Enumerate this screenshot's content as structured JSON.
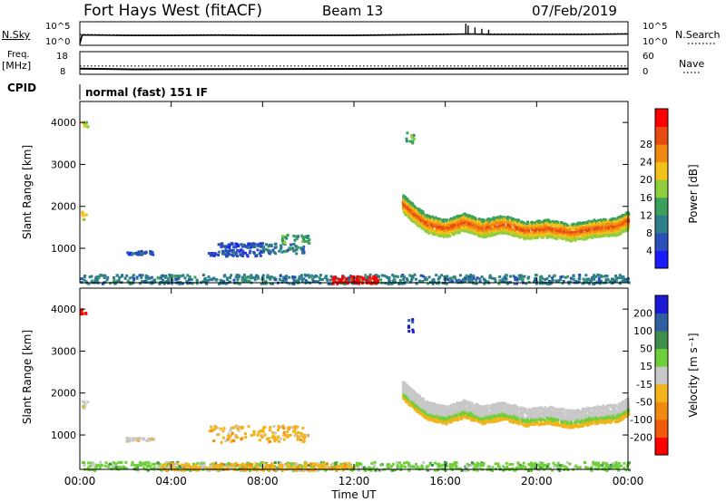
{
  "header": {
    "station": "Fort Hays West (fitACF)",
    "beam": "Beam 13",
    "date": "07/Feb/2019"
  },
  "cpid_label": "CPID",
  "cpid_text": "normal (fast) 151 IF",
  "chart_data": [
    {
      "type": "line",
      "panel": "noise",
      "left_label": "N.Sky",
      "right_label": "N.Search",
      "left_ticks": [
        "10^5",
        "10^0"
      ],
      "right_ticks": [
        "10^5",
        "10^0"
      ],
      "series": [
        {
          "name": "N.Sky",
          "style": "solid",
          "x_hours": [
            0,
            0.1,
            2,
            4,
            6,
            8,
            10,
            12,
            14,
            16,
            17,
            18,
            20,
            22,
            24
          ],
          "log10_values": [
            0.3,
            2.2,
            2.1,
            2.1,
            2.15,
            2.1,
            2.1,
            2.1,
            2.2,
            2.3,
            2.4,
            2.3,
            2.3,
            2.3,
            2.4
          ]
        },
        {
          "name": "N.Search",
          "style": "dotted",
          "x_hours": [
            0,
            2,
            4,
            6,
            8,
            10,
            12,
            14,
            16,
            18,
            20,
            22,
            24
          ],
          "log10_values": [
            2.3,
            2.2,
            2.2,
            2.25,
            2.2,
            2.2,
            2.2,
            2.3,
            2.4,
            2.4,
            2.4,
            2.4,
            2.5
          ]
        }
      ],
      "spikes": [
        {
          "x_hours": 16.9,
          "log10_value": 4.6
        },
        {
          "x_hours": 17.0,
          "log10_value": 4.2
        },
        {
          "x_hours": 17.3,
          "log10_value": 3.8
        },
        {
          "x_hours": 17.6,
          "log10_value": 3.5
        },
        {
          "x_hours": 17.9,
          "log10_value": 3.3
        }
      ]
    },
    {
      "type": "line",
      "panel": "freq-nave",
      "left_label": "Freq.",
      "left_unit": "[MHz]",
      "right_label": "Nave",
      "left_ticks": [
        "18",
        "8"
      ],
      "right_ticks": [
        "60",
        "0"
      ],
      "series": [
        {
          "name": "Freq.",
          "style": "solid",
          "x_hours": [
            0,
            2.3,
            14.8,
            24
          ],
          "values": [
            10.5,
            10.2,
            10.5,
            10.5
          ]
        },
        {
          "name": "Nave",
          "style": "dotted",
          "x_hours": [
            0,
            24
          ],
          "values": [
            22,
            22
          ]
        }
      ]
    },
    {
      "type": "heatmap",
      "panel": "power",
      "ylabel": "Slant Range [km]",
      "yticks": [
        "1000",
        "2000",
        "3000",
        "4000"
      ],
      "ylim": [
        180,
        4500
      ],
      "xlim_hours": [
        0,
        24
      ],
      "colorbar_label": "Power [dB]",
      "colorbar_ticks": [
        "4",
        "8",
        "12",
        "16",
        "20",
        "24",
        "28"
      ],
      "colorbar_colors": [
        "#1a1aff",
        "#2a4fb8",
        "#2f7e8c",
        "#3aa05a",
        "#8fcf3c",
        "#f2c21a",
        "#f28a12",
        "#e84a12",
        "#ff0000"
      ],
      "regions": [
        {
          "t0": 0.0,
          "t1": 0.3,
          "r0": 3900,
          "r1": 4100,
          "level": 4
        },
        {
          "t0": 0.0,
          "t1": 0.3,
          "r0": 1700,
          "r1": 1900,
          "level": 5
        },
        {
          "t0": 2.0,
          "t1": 3.2,
          "r0": 880,
          "r1": 960,
          "level": 1
        },
        {
          "t0": 5.6,
          "t1": 8.0,
          "r0": 840,
          "r1": 1000,
          "level": 1
        },
        {
          "t0": 6.0,
          "t1": 8.0,
          "r0": 1050,
          "r1": 1150,
          "level": 1
        },
        {
          "t0": 8.0,
          "t1": 9.8,
          "r0": 900,
          "r1": 1150,
          "level": 2
        },
        {
          "t0": 8.8,
          "t1": 10.0,
          "r0": 1150,
          "r1": 1350,
          "level": 3
        },
        {
          "t0": 14.2,
          "t1": 14.6,
          "r0": 3500,
          "r1": 3800,
          "level": 3
        },
        {
          "t0": 0.0,
          "t1": 24.0,
          "r0": 180,
          "r1": 400,
          "level": 2
        },
        {
          "t0": 11.0,
          "t1": 13.0,
          "r0": 180,
          "r1": 360,
          "level": 8
        }
      ],
      "traces": [
        {
          "x_hours": [
            14.1,
            14.6,
            15.2,
            16.0,
            16.8,
            17.6,
            18.5,
            19.5,
            20.5,
            21.5,
            22.5,
            23.5,
            24.0
          ],
          "center_km": [
            2100,
            1850,
            1600,
            1500,
            1650,
            1500,
            1600,
            1450,
            1500,
            1400,
            1500,
            1550,
            1700
          ],
          "width_km": 420,
          "levels": [
            3,
            5,
            6,
            7,
            6,
            5,
            4
          ]
        }
      ]
    },
    {
      "type": "heatmap",
      "panel": "velocity",
      "ylabel": "Slant Range [km]",
      "yticks": [
        "1000",
        "2000",
        "3000",
        "4000"
      ],
      "ylim": [
        180,
        4500
      ],
      "xlim_hours": [
        0,
        24
      ],
      "xlabel": "Time UT",
      "xticks": [
        "00:00",
        "04:00",
        "08:00",
        "12:00",
        "16:00",
        "20:00",
        "00:00"
      ],
      "colorbar_label": "Velocity [m s⁻¹]",
      "colorbar_ticks": [
        "200",
        "100",
        "50",
        "15",
        "-15",
        "-50",
        "-100",
        "-200"
      ],
      "colorbar_colors": [
        "#1a1ad6",
        "#2f5fa0",
        "#3f8f4a",
        "#6fcf3a",
        "#c8c8c8",
        "#f2b41a",
        "#f28a12",
        "#f05a0a",
        "#ff0000"
      ],
      "regions": [
        {
          "t0": 0.0,
          "t1": 0.25,
          "r0": 3880,
          "r1": 4050,
          "level": 8
        },
        {
          "t0": 0.0,
          "t1": 0.3,
          "r0": 1650,
          "r1": 1850,
          "level": 4
        },
        {
          "t0": 2.0,
          "t1": 3.2,
          "r0": 880,
          "r1": 960,
          "level": 4
        },
        {
          "t0": 5.6,
          "t1": 10.0,
          "r0": 850,
          "r1": 1250,
          "level": 5
        },
        {
          "t0": 14.3,
          "t1": 14.55,
          "r0": 3450,
          "r1": 3800,
          "level": 0
        },
        {
          "t0": 0.0,
          "t1": 24.0,
          "r0": 180,
          "r1": 380,
          "level": 3
        },
        {
          "t0": 3.5,
          "t1": 12.0,
          "r0": 180,
          "r1": 360,
          "level": 5
        }
      ],
      "traces": [
        {
          "x_hours": [
            14.1,
            14.6,
            15.2,
            16.0,
            16.8,
            17.6,
            18.5,
            19.5,
            20.5,
            21.5,
            22.5,
            23.5,
            24.0
          ],
          "center_km": [
            2100,
            1850,
            1600,
            1500,
            1650,
            1500,
            1600,
            1450,
            1500,
            1400,
            1500,
            1550,
            1700
          ],
          "width_km": 420,
          "levels": [
            4,
            4,
            4,
            3,
            5
          ]
        }
      ]
    }
  ]
}
